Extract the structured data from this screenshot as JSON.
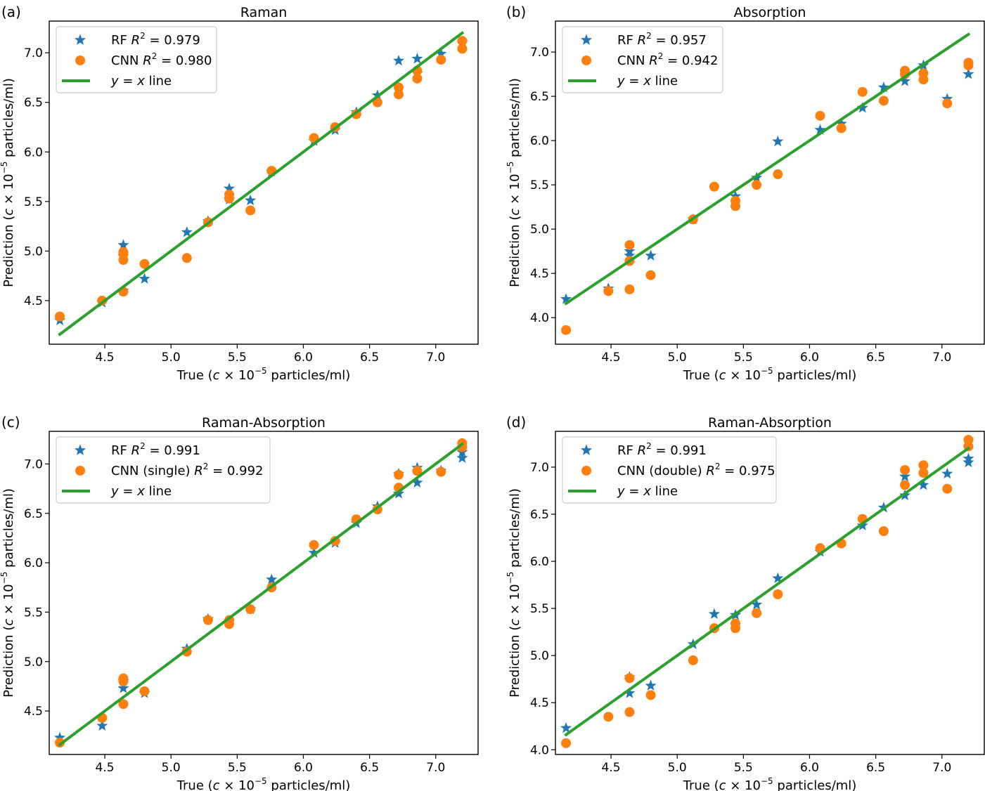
{
  "colors": {
    "rf": "#1f77b4",
    "cnn": "#ff7f0e",
    "line": "#2ca02c"
  },
  "chart_data": [
    {
      "type": "scatter",
      "panel_label": "(a)",
      "title": "Raman",
      "xlabel_pre": "True (",
      "xlabel_post": " particles/ml)",
      "ylabel_pre": "Prediction (",
      "ylabel_post": " particles/ml)",
      "xlim": [
        4.08,
        7.32
      ],
      "ylim": [
        4.06,
        7.32
      ],
      "xticks": [
        "4.5",
        "5.0",
        "5.5",
        "6.0",
        "6.5",
        "7.0"
      ],
      "yticks": [
        "4.5",
        "5.0",
        "5.5",
        "6.0",
        "6.5",
        "7.0"
      ],
      "legend_position": "upper-left",
      "legend": [
        {
          "key": "rf",
          "label": "RF ",
          "r2": "0.979"
        },
        {
          "key": "cnn",
          "label": "CNN ",
          "r2": "0.980"
        },
        {
          "key": "line",
          "label": "line"
        }
      ],
      "series": [
        {
          "key": "rf",
          "marker": "star",
          "x": [
            4.16,
            4.48,
            4.64,
            4.64,
            4.64,
            4.8,
            5.12,
            5.28,
            5.44,
            5.44,
            5.6,
            5.76,
            6.08,
            6.24,
            6.4,
            6.56,
            6.72,
            6.86,
            6.86,
            7.04,
            7.2
          ],
          "y": [
            4.3,
            4.48,
            4.6,
            4.95,
            5.06,
            4.72,
            5.19,
            5.3,
            5.52,
            5.63,
            5.51,
            5.8,
            6.11,
            6.22,
            6.4,
            6.57,
            6.92,
            6.94,
            6.79,
            6.99,
            7.11
          ]
        },
        {
          "key": "cnn",
          "marker": "circle",
          "x": [
            4.16,
            4.48,
            4.64,
            4.64,
            4.64,
            4.64,
            4.8,
            5.12,
            5.28,
            5.44,
            5.44,
            5.6,
            5.76,
            6.08,
            6.24,
            6.4,
            6.56,
            6.72,
            6.72,
            6.86,
            6.86,
            7.04,
            7.2,
            7.2
          ],
          "y": [
            4.34,
            4.5,
            4.59,
            4.91,
            4.97,
            4.99,
            4.87,
            4.93,
            5.29,
            5.53,
            5.57,
            5.41,
            5.81,
            6.14,
            6.25,
            6.38,
            6.5,
            6.58,
            6.65,
            6.74,
            6.82,
            6.93,
            7.04,
            7.12
          ]
        }
      ],
      "line": {
        "x": [
          4.16,
          7.2
        ],
        "y": [
          4.16,
          7.2
        ]
      }
    },
    {
      "type": "scatter",
      "panel_label": "(b)",
      "title": "Absorption",
      "xlabel_pre": "True (",
      "xlabel_post": " particles/ml)",
      "ylabel_pre": "Prediction (",
      "ylabel_post": " particles/ml)",
      "xlim": [
        4.08,
        7.32
      ],
      "ylim": [
        3.7,
        7.35
      ],
      "xticks": [
        "4.5",
        "5.0",
        "5.5",
        "6.0",
        "6.5",
        "7.0"
      ],
      "yticks": [
        "4.0",
        "4.5",
        "5.0",
        "5.5",
        "6.0",
        "6.5",
        "7.0"
      ],
      "legend_position": "upper-left",
      "legend": [
        {
          "key": "rf",
          "label": "RF ",
          "r2": "0.957"
        },
        {
          "key": "cnn",
          "label": "CNN ",
          "r2": "0.942"
        },
        {
          "key": "line",
          "label": "line"
        }
      ],
      "series": [
        {
          "key": "rf",
          "marker": "star",
          "x": [
            4.16,
            4.48,
            4.64,
            4.64,
            4.8,
            5.12,
            5.44,
            5.6,
            5.76,
            6.08,
            6.24,
            6.4,
            6.56,
            6.72,
            6.86,
            7.04,
            7.2
          ],
          "y": [
            4.21,
            4.33,
            4.75,
            4.7,
            4.7,
            5.11,
            5.37,
            5.58,
            5.99,
            6.12,
            6.19,
            6.37,
            6.6,
            6.67,
            6.85,
            6.47,
            6.75
          ]
        },
        {
          "key": "cnn",
          "marker": "circle",
          "x": [
            4.16,
            4.48,
            4.64,
            4.64,
            4.64,
            4.8,
            5.12,
            5.28,
            5.44,
            5.44,
            5.6,
            5.76,
            6.08,
            6.24,
            6.4,
            6.56,
            6.72,
            6.72,
            6.86,
            6.86,
            7.04,
            7.2,
            7.2
          ],
          "y": [
            3.86,
            4.3,
            4.32,
            4.64,
            4.82,
            4.48,
            5.11,
            5.48,
            5.26,
            5.32,
            5.5,
            5.62,
            6.28,
            6.14,
            6.55,
            6.45,
            6.75,
            6.79,
            6.76,
            6.69,
            6.42,
            6.85,
            6.88
          ]
        }
      ],
      "line": {
        "x": [
          4.16,
          7.2
        ],
        "y": [
          4.16,
          7.2
        ]
      }
    },
    {
      "type": "scatter",
      "panel_label": "(c)",
      "title": "Raman-Absorption",
      "xlabel_pre": "True (",
      "xlabel_post": " particles/ml)",
      "ylabel_pre": "Prediction (",
      "ylabel_post": " particles/ml)",
      "xlim": [
        4.08,
        7.32
      ],
      "ylim": [
        4.06,
        7.33
      ],
      "xticks": [
        "4.5",
        "5.0",
        "5.5",
        "6.0",
        "6.5",
        "7.0"
      ],
      "yticks": [
        "4.5",
        "5.0",
        "5.5",
        "6.0",
        "6.5",
        "7.0"
      ],
      "legend_position": "upper-left",
      "legend": [
        {
          "key": "rf",
          "label": "RF ",
          "r2": "0.991"
        },
        {
          "key": "cnn",
          "label": "CNN (single) ",
          "r2": "0.992"
        },
        {
          "key": "line",
          "label": "line"
        }
      ],
      "series": [
        {
          "key": "rf",
          "marker": "star",
          "x": [
            4.16,
            4.48,
            4.64,
            4.64,
            4.8,
            5.12,
            5.28,
            5.44,
            5.6,
            5.76,
            6.08,
            6.24,
            6.4,
            6.56,
            6.72,
            6.72,
            6.86,
            6.86,
            7.04,
            7.2,
            7.2
          ],
          "y": [
            4.23,
            4.35,
            4.73,
            4.8,
            4.68,
            5.13,
            5.43,
            5.41,
            5.53,
            5.83,
            6.1,
            6.2,
            6.4,
            6.57,
            6.7,
            6.9,
            6.81,
            6.96,
            6.93,
            7.06,
            7.12
          ]
        },
        {
          "key": "cnn",
          "marker": "circle",
          "x": [
            4.16,
            4.48,
            4.64,
            4.64,
            4.64,
            4.8,
            5.12,
            5.28,
            5.44,
            5.44,
            5.6,
            5.76,
            6.08,
            6.24,
            6.4,
            6.56,
            6.72,
            6.72,
            6.86,
            7.04,
            7.2,
            7.2
          ],
          "y": [
            4.18,
            4.43,
            4.57,
            4.8,
            4.83,
            4.7,
            5.1,
            5.42,
            5.38,
            5.42,
            5.53,
            5.75,
            6.18,
            6.22,
            6.44,
            6.54,
            6.76,
            6.89,
            6.93,
            6.92,
            7.17,
            7.21
          ]
        }
      ],
      "line": {
        "x": [
          4.16,
          7.2
        ],
        "y": [
          4.16,
          7.2
        ]
      }
    },
    {
      "type": "scatter",
      "panel_label": "(d)",
      "title": "Raman-Absorption",
      "xlabel_pre": "True (",
      "xlabel_post": " particles/ml)",
      "ylabel_pre": "Prediction (",
      "ylabel_post": " particles/ml)",
      "xlim": [
        4.08,
        7.32
      ],
      "ylim": [
        3.95,
        7.38
      ],
      "xticks": [
        "4.5",
        "5.0",
        "5.5",
        "6.0",
        "6.5",
        "7.0"
      ],
      "yticks": [
        "4.0",
        "4.5",
        "5.0",
        "5.5",
        "6.0",
        "6.5",
        "7.0"
      ],
      "legend_position": "upper-left",
      "legend": [
        {
          "key": "rf",
          "label": "RF ",
          "r2": "0.991"
        },
        {
          "key": "cnn",
          "label": "CNN (double) ",
          "r2": "0.975"
        },
        {
          "key": "line",
          "label": "line"
        }
      ],
      "series": [
        {
          "key": "rf",
          "marker": "star",
          "x": [
            4.16,
            4.64,
            4.64,
            4.8,
            5.12,
            5.28,
            5.44,
            5.6,
            5.76,
            6.08,
            6.4,
            6.56,
            6.72,
            6.72,
            6.86,
            7.04,
            7.2,
            7.2
          ],
          "y": [
            4.23,
            4.6,
            4.77,
            4.68,
            5.12,
            5.44,
            5.43,
            5.54,
            5.82,
            6.1,
            6.38,
            6.57,
            6.7,
            6.9,
            6.81,
            6.93,
            7.05,
            7.09
          ]
        },
        {
          "key": "cnn",
          "marker": "circle",
          "x": [
            4.16,
            4.48,
            4.64,
            4.64,
            4.8,
            5.12,
            5.28,
            5.44,
            5.44,
            5.6,
            5.76,
            6.08,
            6.24,
            6.4,
            6.56,
            6.72,
            6.72,
            6.86,
            6.86,
            7.04,
            7.2,
            7.2
          ],
          "y": [
            4.07,
            4.35,
            4.4,
            4.76,
            4.58,
            4.95,
            5.29,
            5.29,
            5.34,
            5.45,
            5.65,
            6.14,
            6.19,
            6.45,
            6.32,
            6.81,
            6.97,
            6.94,
            7.02,
            6.77,
            7.22,
            7.29
          ]
        }
      ],
      "line": {
        "x": [
          4.16,
          7.2
        ],
        "y": [
          4.16,
          7.2
        ]
      }
    }
  ]
}
